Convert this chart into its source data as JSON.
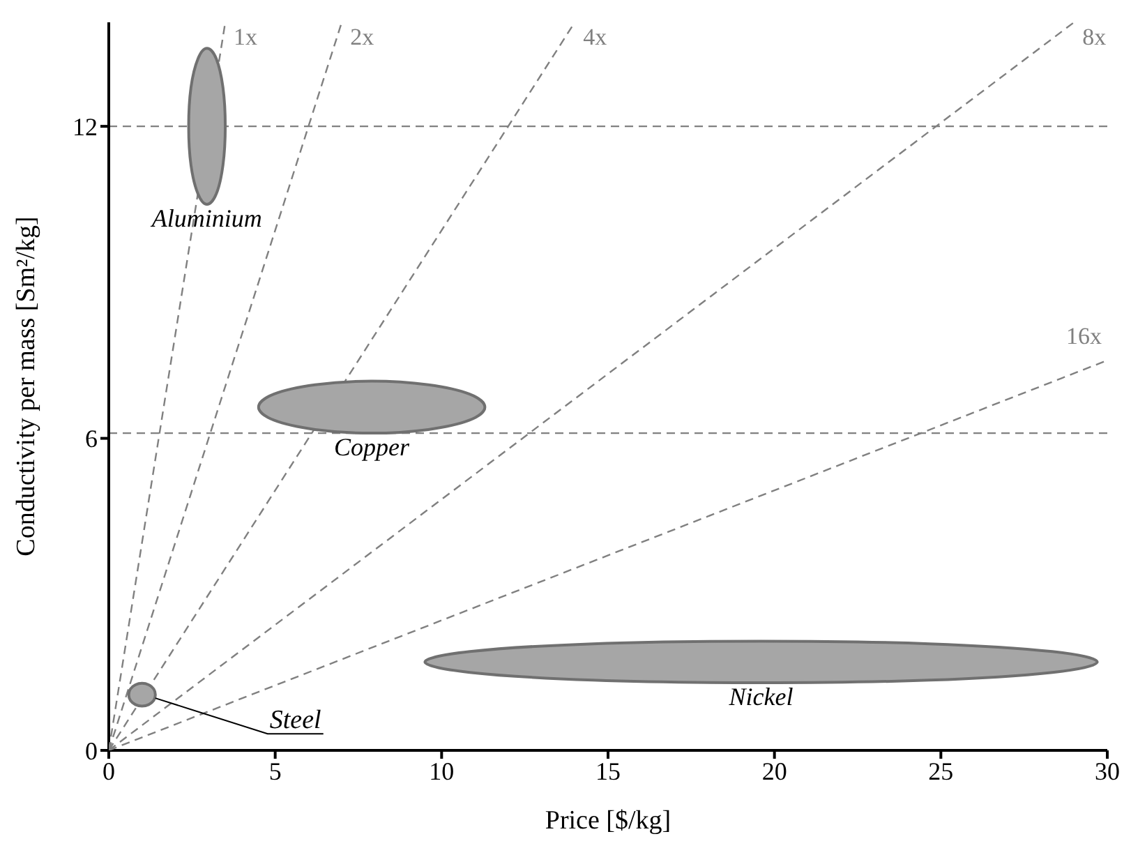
{
  "chart_data": {
    "type": "area",
    "xlabel": "Price [$/kg]",
    "ylabel": "Conductivity per mass [Sm²/kg]",
    "xlim": [
      0,
      30
    ],
    "xticks": [
      0,
      5,
      10,
      15,
      20,
      25,
      30
    ],
    "ylim": [
      0,
      14
    ],
    "yticks": [
      0,
      6,
      12
    ],
    "grid": false,
    "legend": false,
    "ref_lines": [
      {
        "axis": "y",
        "value": 12,
        "color": "#808080",
        "line_style": "dashed"
      },
      {
        "axis": "y",
        "value": 6.1,
        "color": "#808080",
        "line_style": "dashed"
      }
    ],
    "series": [
      {
        "name": "Aluminium",
        "color": "#a6a6a6",
        "x": [
          3.5,
          3.43,
          3.23,
          2.95,
          2.68,
          2.47,
          2.4,
          2.47,
          2.68,
          2.95,
          3.23,
          3.43,
          3.5
        ],
        "values": [
          12,
          12.75,
          13.3,
          13.5,
          13.3,
          12.75,
          12,
          11.25,
          10.7,
          10.5,
          10.7,
          11.25,
          12
        ]
      },
      {
        "name": "Copper",
        "color": "#a6a6a6",
        "x": [
          11.3,
          10.84,
          9.6,
          7.9,
          6.2,
          4.96,
          4.5,
          4.96,
          6.2,
          7.9,
          9.6,
          10.84,
          11.3
        ],
        "values": [
          6.6,
          6.85,
          7.03,
          7.1,
          7.03,
          6.85,
          6.6,
          6.35,
          6.17,
          6.1,
          6.17,
          6.35,
          6.6
        ]
      },
      {
        "name": "Nickel",
        "color": "#a6a6a6",
        "x": [
          29.7,
          28.35,
          24.65,
          19.6,
          14.55,
          10.85,
          9.5,
          10.85,
          14.55,
          19.6,
          24.65,
          28.35,
          29.7
        ],
        "values": [
          1.7,
          1.9,
          2.05,
          2.1,
          2.05,
          1.9,
          1.7,
          1.5,
          1.35,
          1.3,
          1.35,
          1.5,
          1.7
        ]
      },
      {
        "name": "Steel",
        "color": "#a6a6a6",
        "x": [
          1.4,
          1.35,
          1.2,
          1,
          0.8,
          0.65,
          0.6,
          0.65,
          0.8,
          1,
          1.2,
          1.35,
          1.4
        ],
        "values": [
          1.07,
          1.18,
          1.26,
          1.29,
          1.26,
          1.18,
          1.07,
          0.96,
          0.88,
          0.85,
          0.88,
          0.96,
          1.07
        ]
      },
      {
        "name": "1x",
        "type": "line",
        "color": "#808080",
        "line_style": "dashed",
        "x": [
          0,
          3.5
        ],
        "values": [
          0,
          14
        ]
      },
      {
        "name": "2x",
        "type": "line",
        "color": "#808080",
        "line_style": "dashed",
        "x": [
          0,
          7
        ],
        "values": [
          0,
          14
        ]
      },
      {
        "name": "4x",
        "type": "line",
        "color": "#808080",
        "line_style": "dashed",
        "x": [
          0,
          14
        ],
        "values": [
          0,
          14
        ]
      },
      {
        "name": "8x",
        "type": "line",
        "color": "#808080",
        "line_style": "dashed",
        "x": [
          0,
          29
        ],
        "values": [
          0,
          14
        ]
      },
      {
        "name": "16x",
        "type": "line",
        "color": "#808080",
        "line_style": "dashed",
        "x": [
          0,
          30
        ],
        "values": [
          0,
          7.5
        ]
      }
    ]
  }
}
